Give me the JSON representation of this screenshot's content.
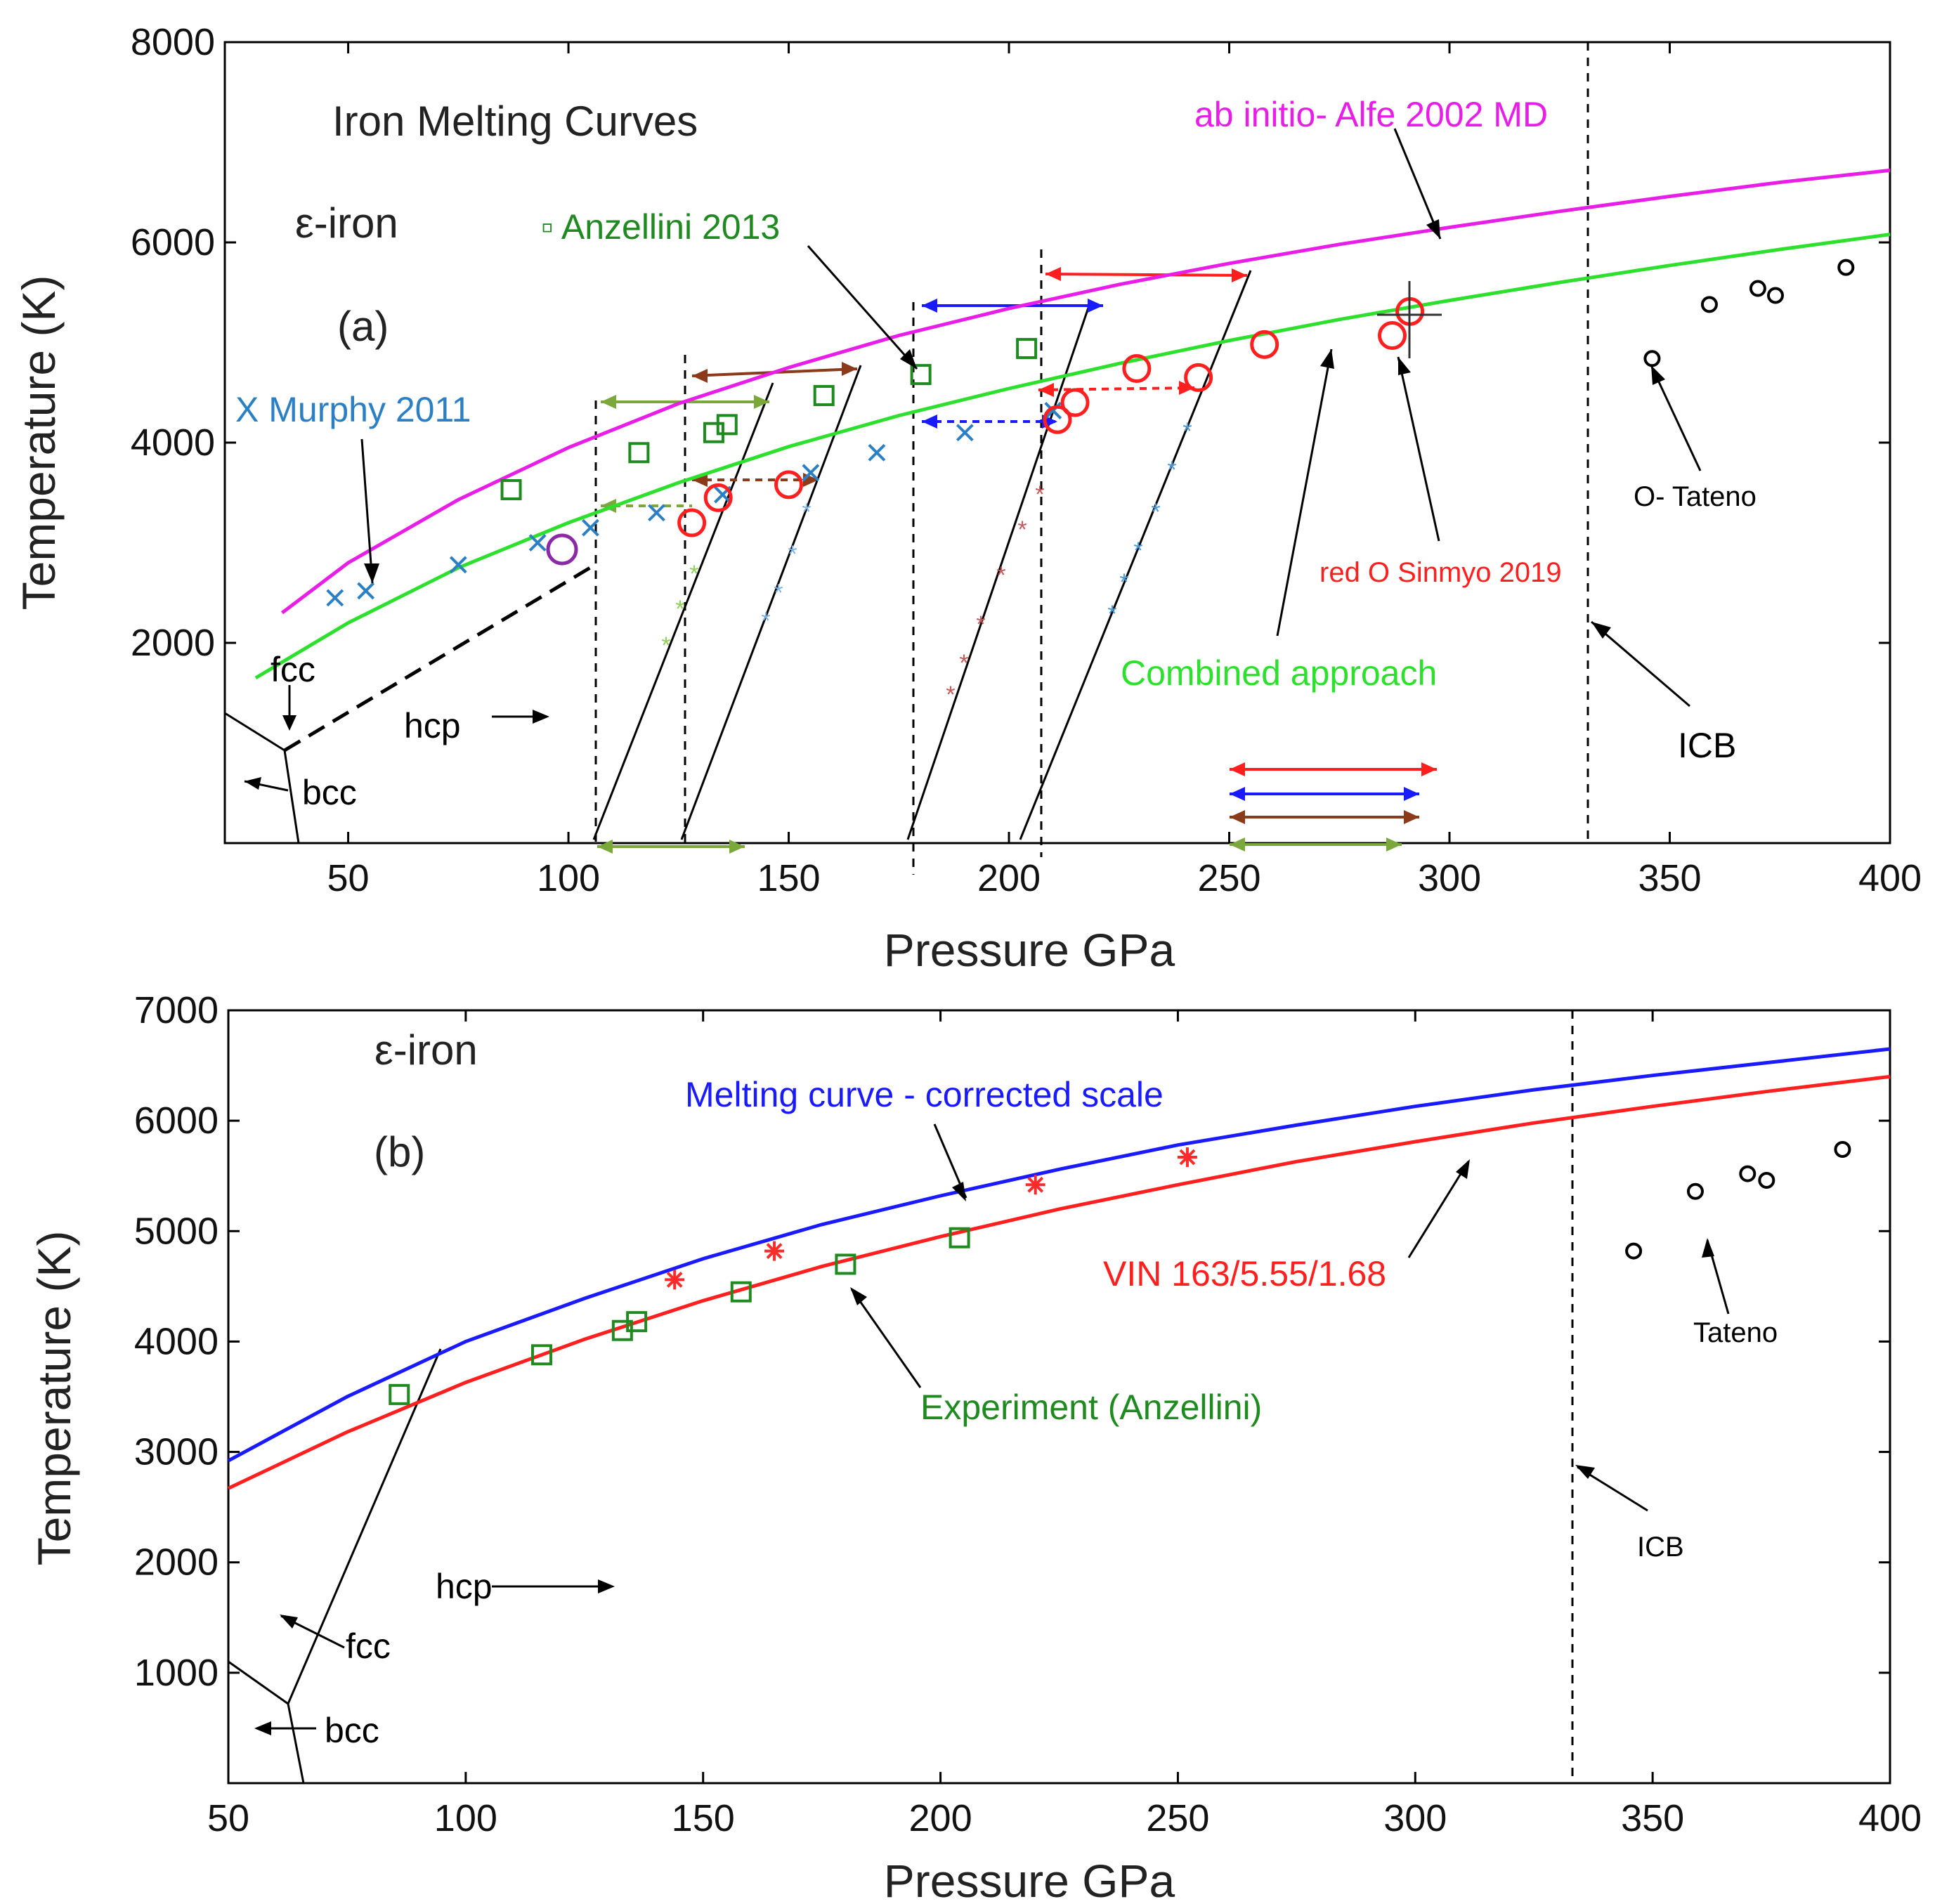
{
  "chart_data": [
    {
      "type": "line",
      "panel": "(a)",
      "title": "Iron Melting Curves",
      "phase_label": "ε-iron",
      "xlabel": "Pressure GPa",
      "ylabel": "Temperature (K)",
      "xlim": [
        22,
        400
      ],
      "ylim": [
        0,
        8000
      ],
      "xticks": [
        50,
        100,
        150,
        200,
        250,
        300,
        350,
        400
      ],
      "yticks": [
        2000,
        4000,
        6000,
        8000
      ],
      "series": [
        {
          "name": "ab initio- Alfe 2002 MD",
          "color": "#e81ee8",
          "kind": "curve",
          "x": [
            35,
            50,
            75,
            100,
            125,
            150,
            175,
            200,
            225,
            250,
            275,
            300,
            325,
            350,
            375,
            400
          ],
          "y": [
            2300,
            2800,
            3430,
            3950,
            4390,
            4750,
            5070,
            5340,
            5580,
            5790,
            5980,
            6150,
            6310,
            6460,
            6600,
            6720
          ]
        },
        {
          "name": "Combined approach",
          "color": "#2ee02e",
          "kind": "curve",
          "x": [
            29,
            50,
            75,
            100,
            125,
            150,
            175,
            200,
            225,
            250,
            275,
            300,
            325,
            350,
            375,
            400
          ],
          "y": [
            1650,
            2200,
            2750,
            3200,
            3600,
            3960,
            4270,
            4540,
            4790,
            5020,
            5230,
            5420,
            5600,
            5770,
            5930,
            6080
          ]
        },
        {
          "name": "X Murphy 2011",
          "color": "#2b7fc4",
          "marker": "x",
          "x": [
            47,
            54,
            75,
            93,
            105,
            120,
            135,
            155,
            170,
            190,
            210
          ],
          "y": [
            2450,
            2520,
            2780,
            3000,
            3150,
            3300,
            3480,
            3700,
            3900,
            4100,
            4320
          ]
        },
        {
          "name": "Anzellini 2013",
          "color": "#1f8a1f",
          "marker": "square",
          "x": [
            87,
            116,
            133,
            136,
            158,
            180,
            204
          ],
          "y": [
            3530,
            3900,
            4100,
            4180,
            4470,
            4680,
            4940
          ]
        },
        {
          "name": "red O Sinmyo 2019",
          "color": "#ff1f1f",
          "marker": "circle",
          "x": [
            128,
            134,
            150,
            211,
            215,
            229,
            243,
            258,
            287,
            291
          ],
          "y": [
            3200,
            3450,
            3580,
            4230,
            4400,
            4740,
            4650,
            4980,
            5070,
            5310
          ]
        },
        {
          "name": "O- Tateno",
          "color": "#000000",
          "marker": "circle",
          "x": [
            346,
            359,
            370,
            374,
            390
          ],
          "y": [
            4840,
            5380,
            5540,
            5470,
            5750
          ]
        }
      ],
      "annotations": [
        "fcc",
        "hcp",
        "bcc",
        "(a)",
        "ICB"
      ]
    },
    {
      "type": "line",
      "panel": "(b)",
      "phase_label": "ε-iron",
      "xlabel": "Pressure GPa",
      "ylabel": "Temperature (K)",
      "xlim": [
        50,
        400
      ],
      "ylim": [
        0,
        7000
      ],
      "xticks": [
        50,
        100,
        150,
        200,
        250,
        300,
        350,
        400
      ],
      "yticks": [
        1000,
        2000,
        3000,
        4000,
        5000,
        6000,
        7000
      ],
      "series": [
        {
          "name": "Melting curve - corrected scale",
          "color": "#1a1aff",
          "kind": "curve",
          "x": [
            50,
            75,
            100,
            125,
            150,
            175,
            200,
            225,
            250,
            275,
            300,
            325,
            350,
            375,
            400
          ],
          "y": [
            2920,
            3500,
            4000,
            4390,
            4750,
            5060,
            5320,
            5560,
            5780,
            5960,
            6130,
            6280,
            6410,
            6530,
            6650
          ]
        },
        {
          "name": "VIN 163/5.55/1.68",
          "color": "#ff1f1f",
          "kind": "curve",
          "x": [
            50,
            75,
            100,
            125,
            150,
            175,
            200,
            225,
            250,
            275,
            300,
            325,
            350,
            375,
            400
          ],
          "y": [
            2670,
            3180,
            3630,
            4020,
            4370,
            4680,
            4950,
            5200,
            5420,
            5630,
            5810,
            5980,
            6130,
            6270,
            6400
          ]
        },
        {
          "name": "Experiment (Anzellini)",
          "color": "#1f8a1f",
          "marker": "square",
          "x": [
            86,
            116,
            133,
            136,
            158,
            180,
            204
          ],
          "y": [
            3520,
            3880,
            4100,
            4180,
            4450,
            4700,
            4940
          ]
        },
        {
          "name": "red asterisks",
          "color": "#ff2b2b",
          "marker": "star",
          "x": [
            144,
            165,
            220,
            252
          ],
          "y": [
            4560,
            4820,
            5420,
            5670
          ]
        },
        {
          "name": "Tateno",
          "color": "#000000",
          "marker": "circle",
          "x": [
            346,
            359,
            370,
            374,
            390
          ],
          "y": [
            4820,
            5360,
            5520,
            5460,
            5740
          ]
        }
      ],
      "annotations": [
        "hcp",
        "fcc",
        "bcc",
        "(b)",
        "ICB"
      ]
    }
  ]
}
